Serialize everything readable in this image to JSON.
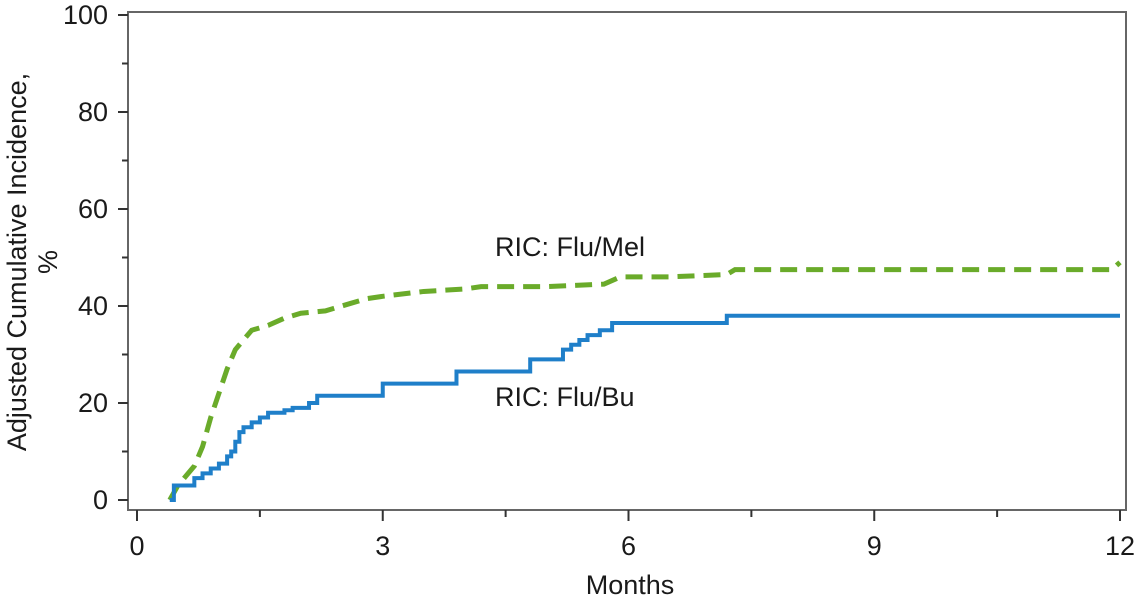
{
  "chart_data": {
    "type": "line",
    "title": "",
    "xlabel": "Months",
    "ylabel_line1": "Adjusted Cumulative Incidence,",
    "ylabel_line2": "%",
    "xlim": [
      0,
      12
    ],
    "ylim": [
      0,
      100
    ],
    "x_ticks": [
      0,
      3,
      6,
      9,
      12
    ],
    "y_ticks": [
      0,
      20,
      40,
      60,
      80,
      100
    ],
    "grid": false,
    "legend": "inline labels",
    "series": [
      {
        "name": "RIC: Flu/Mel",
        "color": "#6aab2a",
        "style": "dashed",
        "step": false,
        "points": [
          [
            0.4,
            0
          ],
          [
            0.5,
            3
          ],
          [
            0.6,
            5
          ],
          [
            0.7,
            7
          ],
          [
            0.8,
            11
          ],
          [
            0.9,
            17
          ],
          [
            1.0,
            22
          ],
          [
            1.1,
            27
          ],
          [
            1.2,
            31
          ],
          [
            1.3,
            33
          ],
          [
            1.4,
            35
          ],
          [
            1.6,
            36
          ],
          [
            1.8,
            37.5
          ],
          [
            2.0,
            38.5
          ],
          [
            2.3,
            39
          ],
          [
            2.6,
            40.5
          ],
          [
            2.8,
            41.5
          ],
          [
            3.0,
            42
          ],
          [
            3.5,
            43
          ],
          [
            4.0,
            43.5
          ],
          [
            4.2,
            44
          ],
          [
            5.0,
            44
          ],
          [
            5.7,
            44.5
          ],
          [
            5.9,
            46
          ],
          [
            6.5,
            46
          ],
          [
            7.2,
            46.5
          ],
          [
            7.3,
            47.5
          ],
          [
            8.0,
            47.5
          ],
          [
            11.9,
            47.5
          ],
          [
            12.0,
            49
          ]
        ]
      },
      {
        "name": "RIC: Flu/Bu",
        "color": "#1f7fc9",
        "style": "solid",
        "step": true,
        "points": [
          [
            0.4,
            0
          ],
          [
            0.45,
            3
          ],
          [
            0.7,
            4.5
          ],
          [
            0.8,
            5.5
          ],
          [
            0.9,
            6.5
          ],
          [
            1.0,
            7.5
          ],
          [
            1.1,
            9
          ],
          [
            1.15,
            10
          ],
          [
            1.2,
            12
          ],
          [
            1.25,
            14
          ],
          [
            1.3,
            15
          ],
          [
            1.4,
            16
          ],
          [
            1.5,
            17
          ],
          [
            1.6,
            18
          ],
          [
            1.8,
            18.5
          ],
          [
            1.9,
            19
          ],
          [
            2.1,
            20
          ],
          [
            2.2,
            21.5
          ],
          [
            3.0,
            24
          ],
          [
            3.9,
            26.5
          ],
          [
            4.8,
            29
          ],
          [
            5.2,
            31
          ],
          [
            5.3,
            32
          ],
          [
            5.4,
            33
          ],
          [
            5.5,
            34
          ],
          [
            5.65,
            35
          ],
          [
            5.8,
            36.5
          ],
          [
            7.2,
            38
          ],
          [
            12.0,
            38
          ]
        ]
      }
    ]
  }
}
